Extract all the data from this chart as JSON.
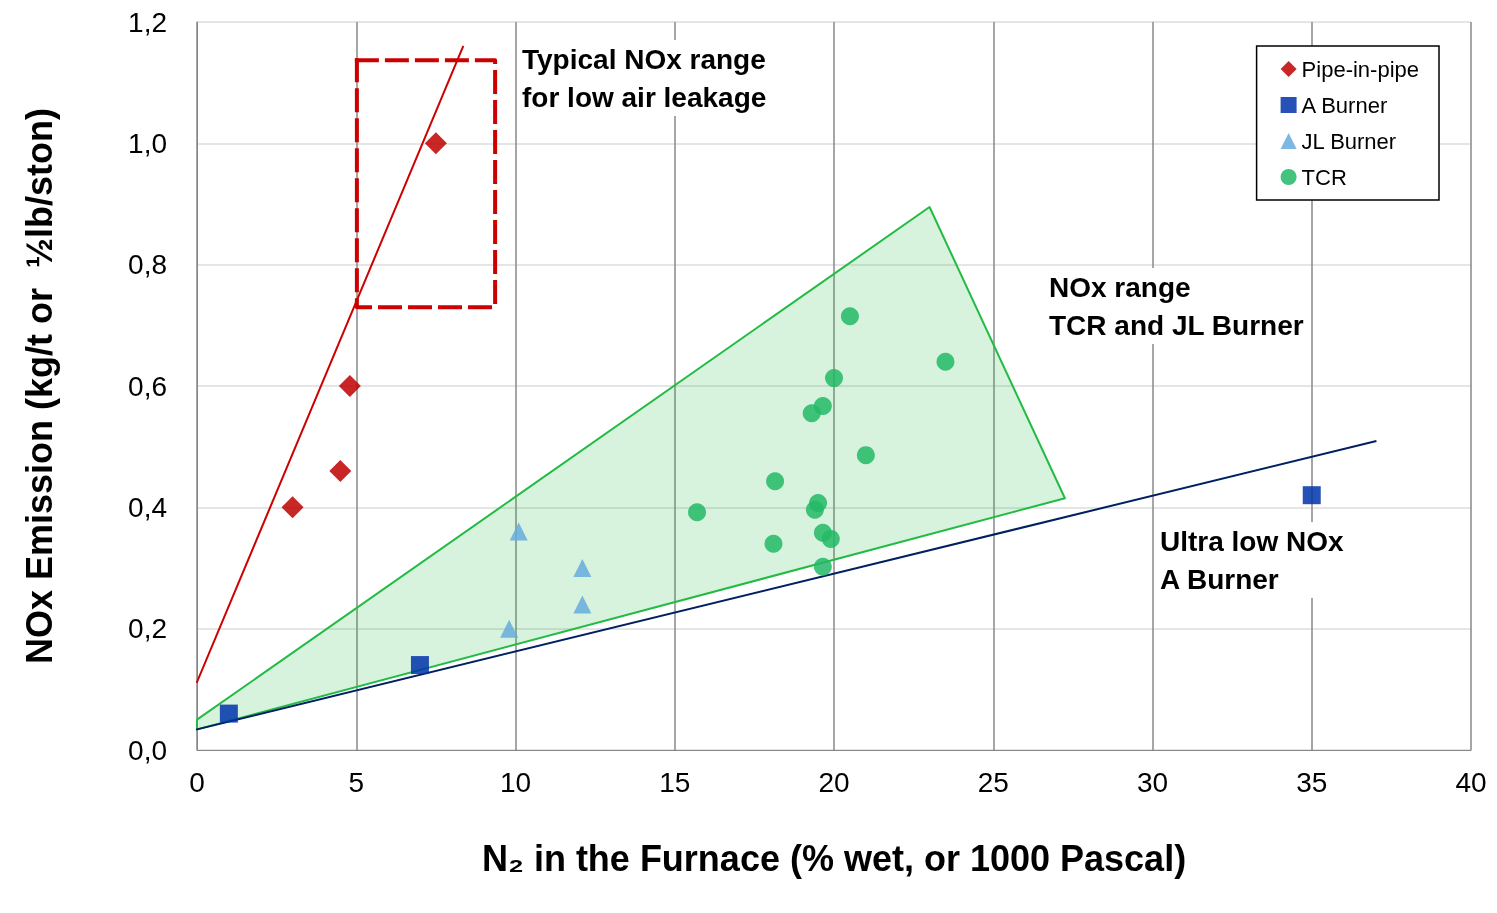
{
  "chart_data": {
    "type": "scatter",
    "xlabel": "N₂ in the Furnace (% wet, or 1000 Pascal)",
    "ylabel": "NOx Emission (kg/t or  ½lb/ston)",
    "xlim": [
      0,
      40
    ],
    "xticks": [
      0,
      5,
      10,
      15,
      20,
      25,
      30,
      35,
      40
    ],
    "ylim": [
      0,
      1.2
    ],
    "yticks": [
      {
        "value": 0,
        "label": "0,0"
      },
      {
        "value": 0.2,
        "label": "0,2"
      },
      {
        "value": 0.4,
        "label": "0,4"
      },
      {
        "value": 0.6,
        "label": "0,6"
      },
      {
        "value": 0.8,
        "label": "0,8"
      },
      {
        "value": 1.0,
        "label": "1,0"
      },
      {
        "value": 1.2,
        "label": "1,2"
      }
    ],
    "grid": true,
    "legend": "top right",
    "series": [
      {
        "type": "area",
        "color": "#22bb44",
        "x": [
          0,
          23,
          27.25,
          0
        ],
        "values": [
          0.05,
          0.895,
          0.415,
          0.034
        ]
      },
      {
        "type": "line",
        "color": "#cc0000",
        "marker": "none",
        "x": [
          0,
          8.35
        ],
        "values": [
          0.112,
          1.159
        ]
      },
      {
        "type": "line",
        "color": "#002060",
        "marker": "none",
        "x": [
          0,
          37
        ],
        "values": [
          0.034,
          0.509
        ]
      },
      {
        "type": "line",
        "color": "#cc0000",
        "marker": "none",
        "line_style": "dashed",
        "x": [
          5.02,
          9.36,
          9.36
        ],
        "values": [
          1.137,
          1.137,
          0.73
        ]
      },
      {
        "type": "line",
        "color": "#cc0000",
        "marker": "none",
        "line_style": "dashed",
        "x": [
          5.02,
          5.02,
          9.36
        ],
        "values": [
          1.137,
          0.73,
          0.73
        ]
      },
      {
        "name": "Pipe-in-pipe",
        "marker": "diamond",
        "color": "#c00000",
        "x": [
          3,
          4.5,
          4.8,
          7.5
        ],
        "values": [
          0.4,
          0.46,
          0.6,
          1.0
        ]
      },
      {
        "name": "A Burner",
        "marker": "square",
        "color": "#0033aa",
        "x": [
          1,
          7,
          35
        ],
        "values": [
          0.06,
          0.14,
          0.42
        ]
      },
      {
        "name": "JL Burner",
        "marker": "triangle",
        "color": "#66aadd",
        "x": [
          10.1,
          12.1,
          12.1,
          9.8
        ],
        "values": [
          0.36,
          0.3,
          0.24,
          0.2
        ]
      },
      {
        "name": "TCR",
        "marker": "circle",
        "color": "#22b866",
        "x": [
          20.5,
          23.5,
          20,
          19.65,
          19.3,
          21,
          18.15,
          15.7,
          19.5,
          19.4,
          19.65,
          19.9,
          18.1,
          19.65
        ],
        "values": [
          0.715,
          0.64,
          0.613,
          0.567,
          0.555,
          0.486,
          0.443,
          0.392,
          0.407,
          0.396,
          0.358,
          0.348,
          0.34,
          0.302
        ]
      }
    ],
    "annotations": [
      "Typical NOx range\nfor low air leakage",
      "NOx range\nTCR and JL Burner",
      "Ultra low NOx\nA Burner"
    ]
  }
}
